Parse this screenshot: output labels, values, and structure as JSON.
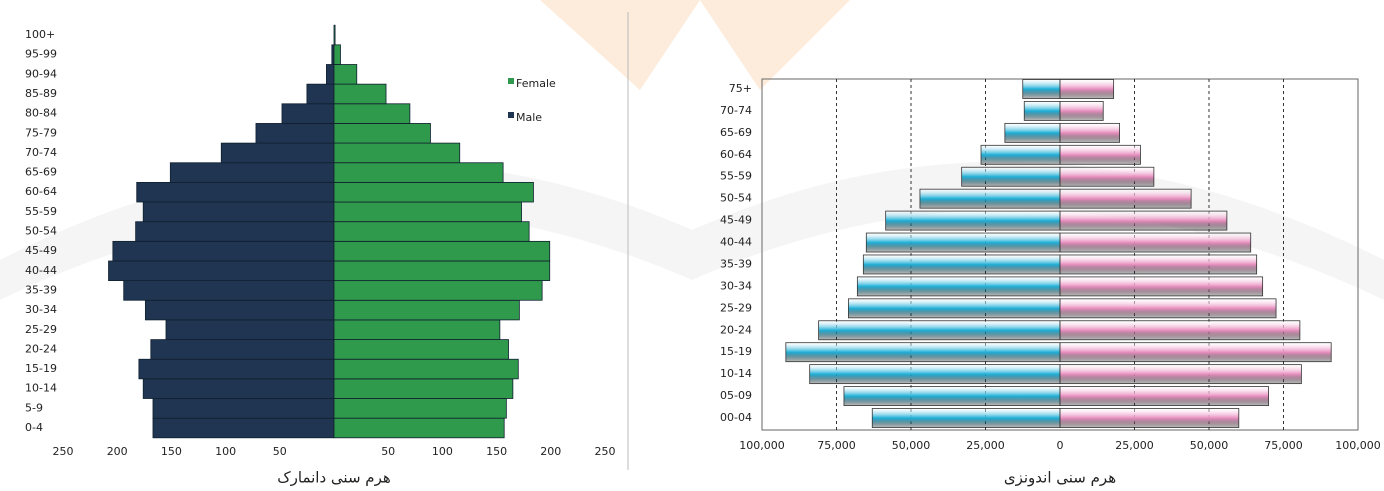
{
  "chart_data": [
    {
      "type": "pyramid",
      "title": "هرم سنی دانمارک",
      "categories": [
        "0-4",
        "5-9",
        "10-14",
        "15-19",
        "20-24",
        "25-29",
        "30-34",
        "35-39",
        "40-44",
        "45-49",
        "50-54",
        "55-59",
        "60-64",
        "65-69",
        "70-74",
        "75-79",
        "80-84",
        "85-89",
        "90-94",
        "95-99",
        "100+"
      ],
      "series": [
        {
          "name": "Male",
          "color": "#1f3552",
          "values": [
            167,
            167,
            176,
            180,
            169,
            155,
            174,
            194,
            208,
            204,
            183,
            176,
            182,
            151,
            104,
            72,
            48,
            25,
            7,
            2,
            0
          ]
        },
        {
          "name": "Female",
          "color": "#2f9a4c",
          "values": [
            157,
            159,
            165,
            170,
            161,
            153,
            171,
            192,
            199,
            199,
            180,
            173,
            184,
            156,
            116,
            89,
            70,
            48,
            21,
            6,
            1
          ]
        }
      ],
      "xlim": [
        -250,
        250
      ],
      "xticks": [
        {
          "value": -250,
          "label": "250"
        },
        {
          "value": -200,
          "label": "200"
        },
        {
          "value": -150,
          "label": "150"
        },
        {
          "value": -100,
          "label": "100"
        },
        {
          "value": -50,
          "label": "50"
        },
        50,
        100,
        150,
        200,
        250
      ],
      "grid": false,
      "legend": "upper right"
    },
    {
      "type": "pyramid",
      "title": "هرم سنی اندونزی",
      "categories": [
        "00-04",
        "05-09",
        "10-14",
        "15-19",
        "20-24",
        "25-29",
        "30-34",
        "35-39",
        "40-44",
        "45-49",
        "50-54",
        "55-59",
        "60-64",
        "65-69",
        "70-74",
        "75+"
      ],
      "series": [
        {
          "color": "#1fb0d8",
          "values": [
            63000,
            72500,
            84000,
            92000,
            81000,
            71000,
            68000,
            66000,
            65000,
            58500,
            47000,
            33000,
            26500,
            18500,
            12000,
            12500
          ]
        },
        {
          "color": "#e98fc0",
          "values": [
            60000,
            70000,
            81000,
            91000,
            80500,
            72500,
            68000,
            66000,
            64000,
            56000,
            44000,
            31500,
            27000,
            20000,
            14500,
            18000
          ]
        }
      ],
      "xlim": [
        -100000,
        100000
      ],
      "xticks": [
        {
          "value": -100000,
          "label": "100,000"
        },
        {
          "value": -75000,
          "label": "75,000"
        },
        {
          "value": -50000,
          "label": "50,000"
        },
        {
          "value": -25000,
          "label": "25,000"
        },
        0,
        {
          "value": 25000,
          "label": "25,000"
        },
        {
          "value": 50000,
          "label": "50,000"
        },
        {
          "value": 75000,
          "label": "75,000"
        },
        {
          "value": 100000,
          "label": "100,000"
        }
      ],
      "grid": true
    }
  ]
}
